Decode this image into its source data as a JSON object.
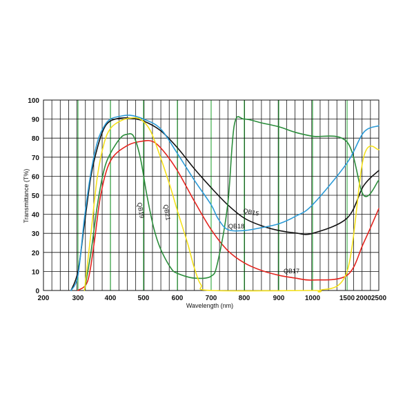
{
  "chart_data": {
    "type": "line",
    "xlabel": "Wavelength (nm)",
    "ylabel": "Transmittance (T%)",
    "x_ticks": [
      "200",
      "300",
      "400",
      "500",
      "600",
      "700",
      "800",
      "900",
      "1000",
      "1500",
      "2000",
      "2500"
    ],
    "y_ticks": [
      "0",
      "10",
      "20",
      "30",
      "40",
      "50",
      "60",
      "70",
      "80",
      "90",
      "100"
    ],
    "ylim": [
      0,
      100
    ],
    "xlim": [
      200,
      2500
    ],
    "x_scale": "piecewise: linear 200-1000 nm, compressed 1000-2500 nm",
    "grid": true,
    "colors": {
      "grid": "#111111",
      "highlight_grid": "#2aa63a",
      "QB15": "#111111",
      "QB17": "#e3231d",
      "QB18": "#2b9ad6",
      "QB19": "#2a8c3a",
      "QB21": "#f5e11a"
    },
    "series": [
      {
        "name": "QB15",
        "x": [
          280,
          300,
          320,
          340,
          360,
          380,
          400,
          430,
          460,
          500,
          550,
          600,
          650,
          700,
          750,
          800,
          850,
          900,
          950,
          1000,
          1500,
          2000,
          2500
        ],
        "y": [
          0,
          10,
          35,
          60,
          75,
          85,
          89,
          90.5,
          90.5,
          89,
          84,
          75,
          64,
          54,
          45,
          38,
          34,
          31.5,
          30.2,
          30,
          38,
          55,
          63
        ]
      },
      {
        "name": "QB17",
        "x": [
          300,
          330,
          350,
          370,
          400,
          450,
          500,
          530,
          560,
          600,
          650,
          700,
          750,
          800,
          850,
          900,
          950,
          1000,
          1500,
          2000,
          2500
        ],
        "y": [
          0,
          5,
          25,
          50,
          68,
          76,
          78.5,
          78,
          73,
          63,
          47,
          32,
          21,
          14.5,
          10.5,
          8,
          6.5,
          5.5,
          8,
          25,
          43
        ]
      },
      {
        "name": "QB18",
        "x": [
          280,
          300,
          320,
          340,
          360,
          380,
          400,
          430,
          460,
          500,
          550,
          600,
          650,
          700,
          720,
          750,
          800,
          850,
          900,
          950,
          1000,
          1500,
          2000,
          2500
        ],
        "y": [
          0,
          8,
          38,
          62,
          78,
          86,
          90,
          91.5,
          92,
          90,
          85,
          72,
          58,
          45,
          38,
          32,
          31.5,
          33,
          35,
          39,
          45,
          67,
          83,
          86.5
        ]
      },
      {
        "name": "QB19",
        "x": [
          320,
          340,
          360,
          380,
          400,
          430,
          450,
          470,
          490,
          510,
          530,
          550,
          580,
          600,
          650,
          700,
          720,
          750,
          770,
          800,
          850,
          900,
          950,
          1000,
          1500,
          2000,
          2500
        ],
        "y": [
          0,
          20,
          45,
          63,
          72,
          80,
          82,
          81,
          70,
          50,
          33,
          22,
          12,
          9,
          6.5,
          7.5,
          15,
          45,
          87,
          90,
          88,
          86,
          83,
          81,
          78,
          50,
          58
        ]
      },
      {
        "name": "QB21",
        "x": [
          320,
          340,
          360,
          380,
          400,
          430,
          460,
          490,
          520,
          550,
          580,
          600,
          630,
          650,
          670,
          700,
          1000,
          1100,
          1500,
          2000,
          2500
        ],
        "y": [
          0,
          30,
          60,
          77,
          85,
          89,
          90.5,
          90,
          84,
          70,
          54,
          42,
          25,
          12,
          3,
          0,
          0,
          0,
          10,
          70,
          74
        ]
      }
    ],
    "annotations": [
      {
        "text": "QB15",
        "series": "QB15"
      },
      {
        "text": "QB17",
        "series": "QB17"
      },
      {
        "text": "QB18",
        "series": "QB18"
      },
      {
        "text": "QB19",
        "series": "QB19"
      },
      {
        "text": "QB21",
        "series": "QB21"
      }
    ]
  }
}
